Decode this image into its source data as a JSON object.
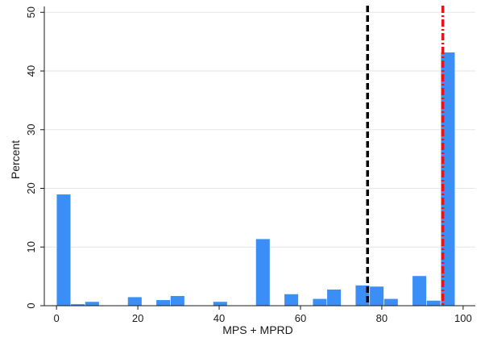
{
  "chart_data": {
    "type": "bar",
    "xlabel": "MPS + MPRD",
    "ylabel": "Percent",
    "xlim": [
      -3,
      103
    ],
    "ylim": [
      0,
      51
    ],
    "x_ticks": [
      0,
      20,
      40,
      60,
      80,
      100
    ],
    "y_ticks": [
      0,
      10,
      20,
      30,
      40,
      50
    ],
    "grid": "horizontal",
    "bar_color": "#3a8ef6",
    "bin_width": 3.5,
    "bins": [
      {
        "x_start": 0.0,
        "value": 19.0
      },
      {
        "x_start": 3.5,
        "value": 0.3
      },
      {
        "x_start": 7.0,
        "value": 0.7
      },
      {
        "x_start": 17.5,
        "value": 1.5
      },
      {
        "x_start": 24.5,
        "value": 1.0
      },
      {
        "x_start": 28.0,
        "value": 1.7
      },
      {
        "x_start": 31.5,
        "value": 0.1
      },
      {
        "x_start": 38.5,
        "value": 0.7
      },
      {
        "x_start": 49.0,
        "value": 11.4
      },
      {
        "x_start": 56.0,
        "value": 2.0
      },
      {
        "x_start": 63.0,
        "value": 1.2
      },
      {
        "x_start": 66.5,
        "value": 2.8
      },
      {
        "x_start": 73.5,
        "value": 3.5
      },
      {
        "x_start": 77.0,
        "value": 3.3
      },
      {
        "x_start": 80.5,
        "value": 1.2
      },
      {
        "x_start": 87.5,
        "value": 5.1
      },
      {
        "x_start": 91.0,
        "value": 0.9
      },
      {
        "x_start": 94.5,
        "value": 43.2
      }
    ],
    "reference_lines": [
      {
        "x": 76.5,
        "color": "#000000",
        "style": "dashed"
      },
      {
        "x": 95.0,
        "color": "#e8141c",
        "style": "dash-dot"
      }
    ]
  }
}
